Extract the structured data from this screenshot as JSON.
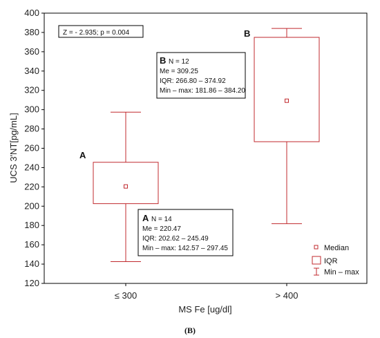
{
  "chart_data": {
    "type": "box",
    "ylabel": "UCS 3'NT[pg/mL]",
    "xlabel": "MS Fe [ug/dl]",
    "ylim": [
      120,
      400
    ],
    "yticks": [
      "120",
      "140",
      "160",
      "180",
      "200",
      "220",
      "240",
      "260",
      "280",
      "300",
      "320",
      "340",
      "360",
      "380",
      "400"
    ],
    "categories": [
      "≤ 300",
      "> 400"
    ],
    "stats_text": "Z = - 2.935; p = 0.004",
    "caption": "(B)",
    "groups": [
      {
        "category": "≤ 300",
        "letter": "A",
        "median": 220.47,
        "q1": 202.62,
        "q3": 245.49,
        "min": 142.57,
        "max": 297.45,
        "annotation": {
          "letter": "A",
          "n": "N = 14",
          "me": "Me = 220.47",
          "iqr": "IQR: 202.62 – 245.49",
          "minmax": "Min – max: 142.57 – 297.45"
        }
      },
      {
        "category": "> 400",
        "letter": "B",
        "median": 309.25,
        "q1": 266.8,
        "q3": 374.92,
        "min": 181.86,
        "max": 384.2,
        "annotation": {
          "letter": "B",
          "n": "N = 12",
          "me": "Me = 309.25",
          "iqr": "IQR: 266.80 – 374.92",
          "minmax": "Min – max: 181.86 – 384.20"
        }
      }
    ],
    "legend": {
      "placement": "bottom-right",
      "items": [
        "Median",
        "IQR",
        "Min – max"
      ]
    },
    "colors": {
      "series": "#c0282d",
      "frame": "#000000"
    }
  }
}
